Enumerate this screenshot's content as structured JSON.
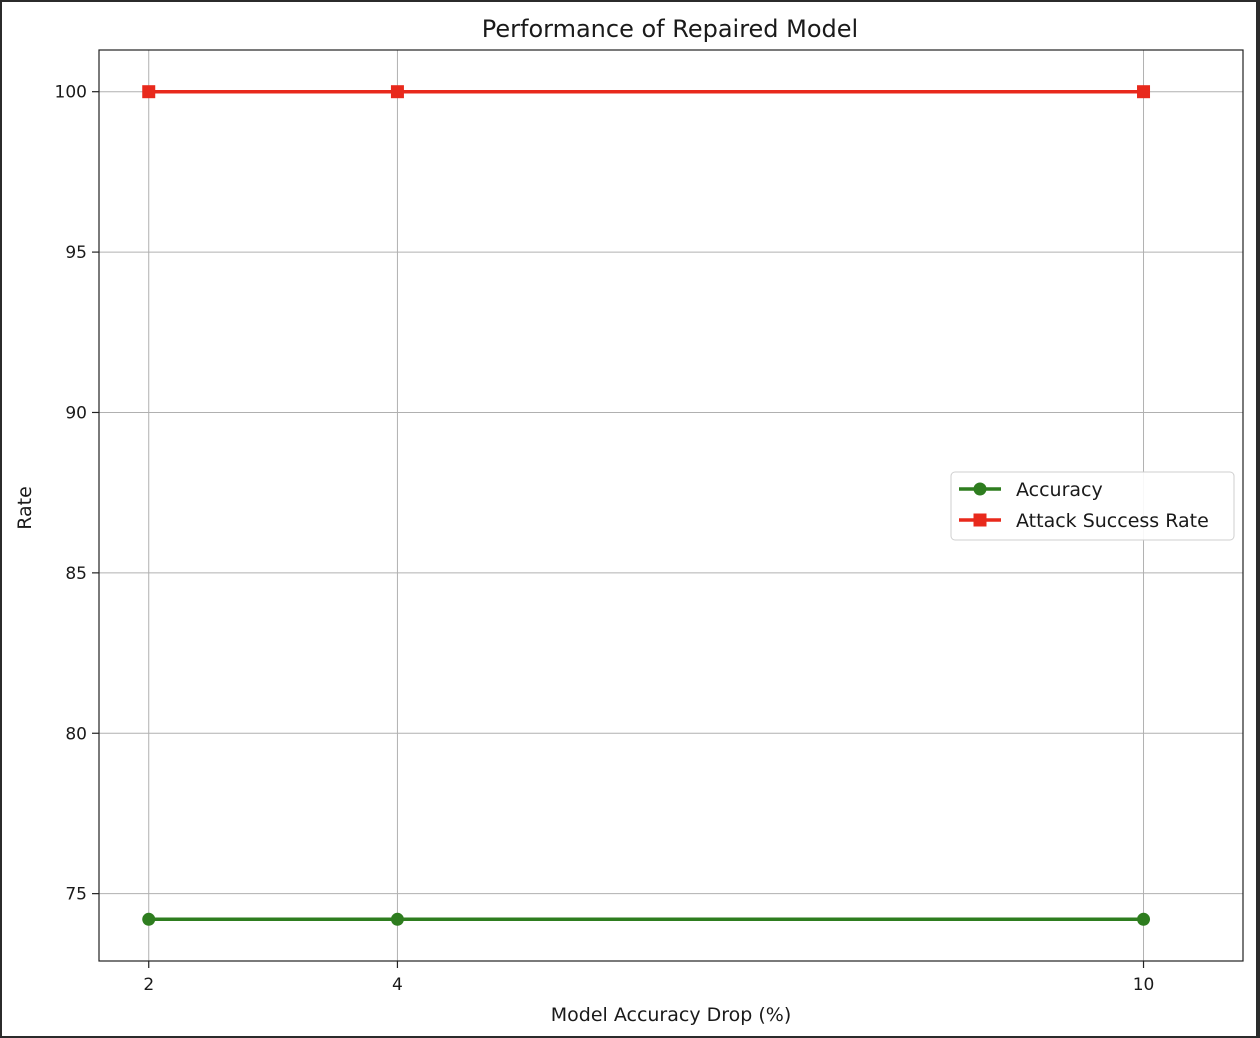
{
  "chart_data": {
    "type": "line",
    "title": "Performance of Repaired Model",
    "xlabel": "Model Accuracy Drop (%)",
    "ylabel": "Rate",
    "x": [
      2,
      4,
      10
    ],
    "xticks": [
      "2",
      "4",
      "10"
    ],
    "yticks": [
      75,
      80,
      85,
      90,
      95,
      100
    ],
    "ytick_labels": [
      "75",
      "80",
      "85",
      "90",
      "95",
      "100"
    ],
    "xlim": [
      1.6,
      10.8
    ],
    "ylim": [
      72.9,
      101.3
    ],
    "grid": true,
    "legend_position": "center-right",
    "series": [
      {
        "name": "Accuracy",
        "values": [
          74.2,
          74.2,
          74.2
        ],
        "color": "#2e7d1f",
        "marker": "circle"
      },
      {
        "name": "Attack Success Rate",
        "values": [
          100,
          100,
          100
        ],
        "color": "#e8291c",
        "marker": "square"
      }
    ]
  }
}
